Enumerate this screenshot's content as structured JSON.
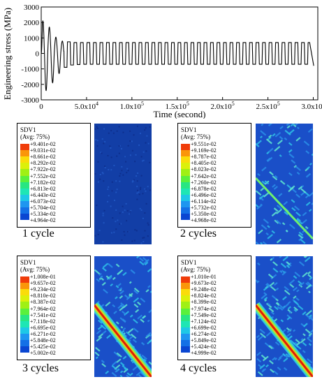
{
  "chart_data": {
    "type": "line",
    "xlabel": "Time (second)",
    "ylabel": "Engineering stress (MPa)",
    "xlim": [
      0,
      305000
    ],
    "ylim": [
      -3000,
      3000
    ],
    "yticks": [
      "3000",
      "2000",
      "1000",
      "0",
      "-1000",
      "-2000",
      "-3000"
    ],
    "ytick_values": [
      3000,
      2000,
      1000,
      0,
      -1000,
      -2000,
      -3000
    ],
    "xticks": [
      "0",
      "5.0x10",
      "1.0x10",
      "1.5x10",
      "2.0x10",
      "2.5x10",
      "3.0x10"
    ],
    "xtick_exponents": [
      "",
      "4",
      "5",
      "5",
      "5",
      "5",
      "5"
    ],
    "xtick_values": [
      0,
      50000,
      100000,
      150000,
      200000,
      250000,
      300000
    ],
    "series": [
      {
        "color": "#000000",
        "description_points_x": [
          0,
          2500,
          5000,
          8000,
          11000,
          14000,
          17000,
          20000,
          23000,
          26000,
          30000
        ],
        "peaks_max": [
          2100,
          1700,
          1050,
          800,
          750,
          700,
          700,
          700,
          700,
          700
        ],
        "peaks_min": [
          -2400,
          -1900,
          -1300,
          -900,
          -750,
          -720,
          -700,
          -700,
          -700,
          -700
        ],
        "steady_amplitude": 700,
        "cycle_count": 41
      }
    ],
    "grid": false
  },
  "contour_colors": [
    "#0a28b4",
    "#0a46d2",
    "#1470e6",
    "#1e96f0",
    "#1ec8e6",
    "#1ee6b4",
    "#28e682",
    "#5af03c",
    "#a0f014",
    "#dcf00a",
    "#fadc0a",
    "#fa960a",
    "#f03c0a",
    "#dc0a0a"
  ],
  "panels": [
    {
      "legend_title": "SDV1",
      "legend_sub": "(Avg: 75%)",
      "values": [
        "+9.401e-02",
        "+9.031e-02",
        "+8.661e-02",
        "+8.292e-02",
        "+7.922e-02",
        "+7.552e-02",
        "+7.182e-02",
        "+6.813e-02",
        "+6.443e-02",
        "+6.073e-02",
        "+5.704e-02",
        "+5.334e-02",
        "+4.964e-02"
      ],
      "caption": "1 cycle"
    },
    {
      "legend_title": "SDV1",
      "legend_sub": "(Avg: 75%)",
      "values": [
        "+9.551e-02",
        "+9.169e-02",
        "+8.787e-02",
        "+8.405e-02",
        "+8.023e-02",
        "+7.642e-02",
        "+7.260e-02",
        "+6.878e-02",
        "+6.496e-02",
        "+6.114e-02",
        "+5.732e-02",
        "+5.350e-02",
        "+4.968e-02"
      ],
      "caption": "2 cycles"
    },
    {
      "legend_title": "SDV1",
      "legend_sub": "(Avg: 75%)",
      "values": [
        "+1.008e-01",
        "+9.657e-02",
        "+9.234e-02",
        "+8.810e-02",
        "+8.387e-02",
        "+7.964e-02",
        "+7.541e-02",
        "+7.118e-02",
        "+6.695e-02",
        "+6.271e-02",
        "+5.848e-02",
        "+5.425e-02",
        "+5.002e-02"
      ],
      "caption": "3 cycles"
    },
    {
      "legend_title": "SDV1",
      "legend_sub": "(Avg: 75%)",
      "values": [
        "+1.010e-01",
        "+9.673e-02",
        "+9.248e-02",
        "+8.824e-02",
        "+8.399e-02",
        "+7.974e-02",
        "+7.549e-02",
        "+7.124e-02",
        "+6.699e-02",
        "+6.274e-02",
        "+5.849e-02",
        "+5.424e-02",
        "+4.999e-02"
      ],
      "caption": "4 cycles"
    }
  ]
}
